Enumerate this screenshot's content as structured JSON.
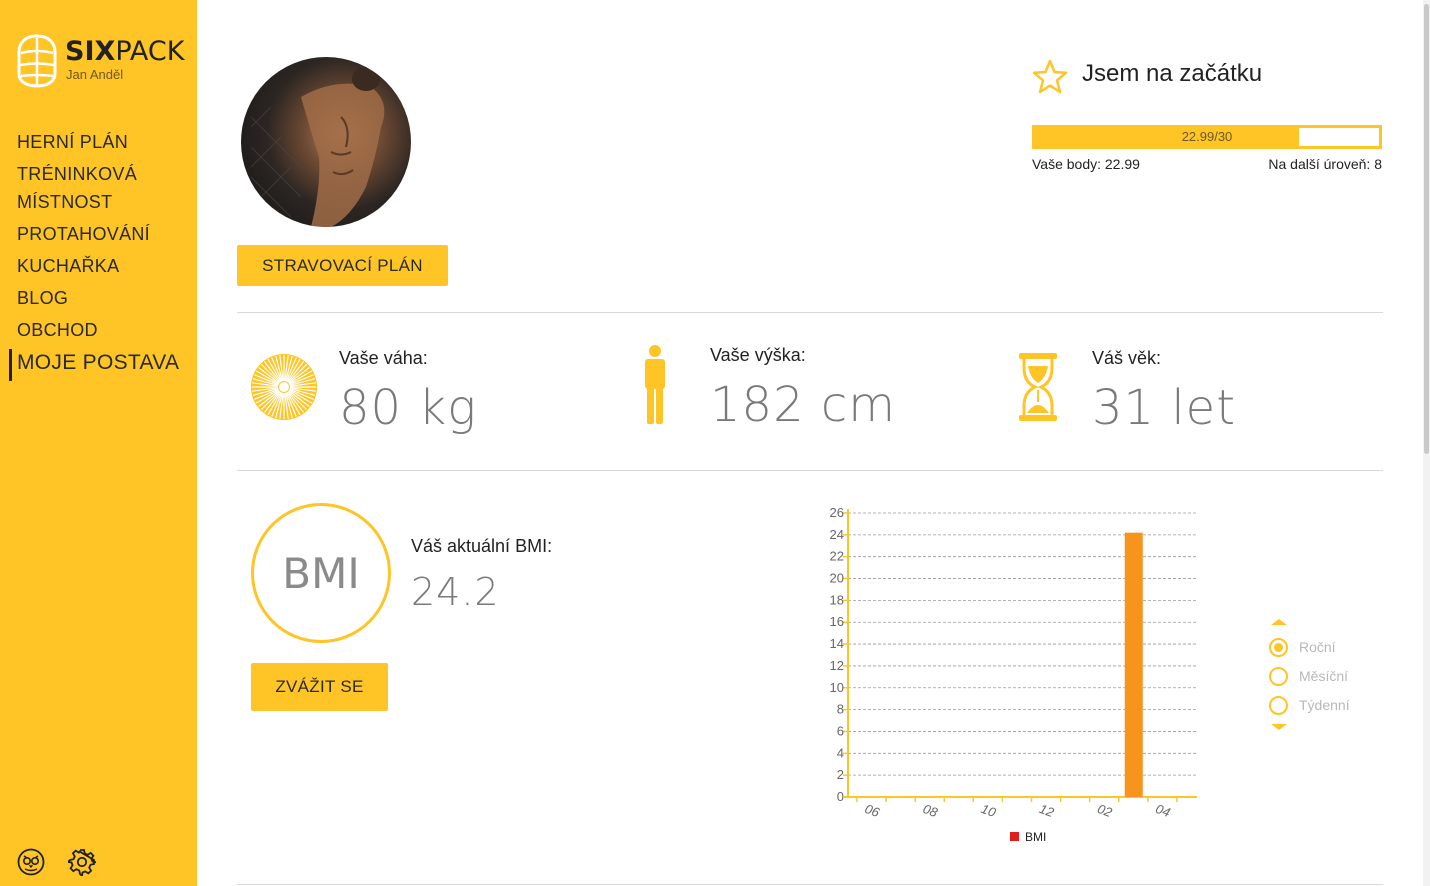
{
  "brand": {
    "name_bold": "SIX",
    "name_rest": "PACK",
    "user": "Jan Anděl",
    "accent": "#ffc425",
    "bar_color": "#f7941d"
  },
  "nav": {
    "items": [
      {
        "label": "HERNÍ PLÁN"
      },
      {
        "label": "TRÉNINKOVÁ MÍSTNOST"
      },
      {
        "label": "PROTAHOVÁNÍ"
      },
      {
        "label": "KUCHAŘKA"
      },
      {
        "label": "BLOG"
      },
      {
        "label": "OBCHOD"
      },
      {
        "label": "MOJE POSTAVA",
        "active": true
      }
    ]
  },
  "footer_icons": [
    "owl-icon",
    "gear-icon"
  ],
  "profile": {
    "meal_plan_button": "STRAVOVACÍ PLÁN"
  },
  "level": {
    "title": "Jsem na začátku",
    "progress_text": "22.99/30",
    "progress_fraction": 0.7663,
    "points_label": "Vaše body: 22.99",
    "next_level_label": "Na další úroveň: 8"
  },
  "stats": {
    "weight": {
      "label": "Vaše váha:",
      "value": "80 kg",
      "icon": "scale-icon"
    },
    "height": {
      "label": "Vaše výška:",
      "value": "182 cm",
      "icon": "person-icon"
    },
    "age": {
      "label": "Váš věk:",
      "value": "31 let",
      "icon": "hourglass-icon"
    }
  },
  "bmi": {
    "circle_text": "BMI",
    "label": "Váš aktuální BMI:",
    "value": "24.2",
    "weigh_button": "ZVÁŽIT SE"
  },
  "chart_data": {
    "type": "bar",
    "categories": [
      "06",
      "08",
      "10",
      "12",
      "02",
      "04"
    ],
    "series": [
      {
        "name": "BMI",
        "values": [
          null,
          null,
          null,
          null,
          24.2,
          null
        ]
      }
    ],
    "bar_position_label_after": "02",
    "ylim": [
      0,
      26
    ],
    "yticks": [
      0,
      2,
      4,
      6,
      8,
      10,
      12,
      14,
      16,
      18,
      20,
      22,
      24,
      26
    ],
    "grid": true,
    "legend": "bottom",
    "legend_color": "#e0201c"
  },
  "range": {
    "options": [
      {
        "label": "Roční",
        "selected": true
      },
      {
        "label": "Měsíční",
        "selected": false
      },
      {
        "label": "Týdenní",
        "selected": false
      }
    ]
  }
}
